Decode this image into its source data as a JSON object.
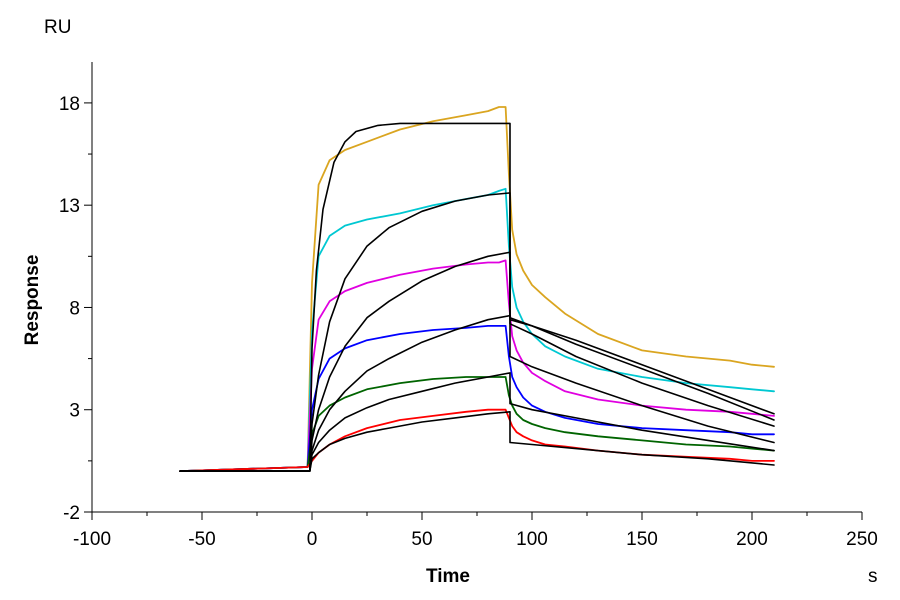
{
  "chart_data": {
    "type": "line",
    "xlabel": "Time",
    "ylabel": "Response",
    "x_unit": "s",
    "y_unit": "RU",
    "xlim": [
      -100,
      250
    ],
    "ylim": [
      -2,
      20
    ],
    "x_ticks": [
      -100,
      -50,
      0,
      50,
      100,
      150,
      200,
      250
    ],
    "y_ticks": [
      -2,
      3,
      8,
      13,
      18
    ],
    "grid": false,
    "series": [
      {
        "kind": "measured",
        "color": "#daa520",
        "x": [
          -60,
          -2,
          0,
          3,
          8,
          15,
          25,
          40,
          55,
          70,
          80,
          85,
          88,
          89.5,
          91,
          93,
          96,
          100,
          106,
          115,
          130,
          150,
          170,
          190,
          200,
          210
        ],
        "y": [
          0,
          0.2,
          9.2,
          14.0,
          15.2,
          15.7,
          16.1,
          16.7,
          17.1,
          17.4,
          17.6,
          17.8,
          17.8,
          14.5,
          11.8,
          10.6,
          9.8,
          9.1,
          8.5,
          7.7,
          6.7,
          5.9,
          5.6,
          5.4,
          5.2,
          5.1
        ]
      },
      {
        "kind": "measured",
        "color": "#00c8d2",
        "x": [
          -60,
          -2,
          0,
          3,
          8,
          15,
          25,
          40,
          55,
          70,
          80,
          85,
          88,
          89.5,
          91,
          93,
          96,
          100,
          106,
          115,
          130,
          150,
          170,
          190,
          200,
          210
        ],
        "y": [
          0,
          0.2,
          6.8,
          10.5,
          11.5,
          12.0,
          12.3,
          12.6,
          13.0,
          13.3,
          13.5,
          13.7,
          13.8,
          11.0,
          9.0,
          8.0,
          7.3,
          6.7,
          6.1,
          5.6,
          5.0,
          4.6,
          4.3,
          4.1,
          4.0,
          3.9
        ]
      },
      {
        "kind": "measured",
        "color": "#e000e0",
        "x": [
          -60,
          -2,
          0,
          3,
          8,
          15,
          25,
          40,
          55,
          70,
          80,
          85,
          88,
          89.5,
          91,
          93,
          96,
          100,
          106,
          115,
          130,
          150,
          170,
          190,
          200,
          210
        ],
        "y": [
          0,
          0.2,
          5.0,
          7.4,
          8.3,
          8.8,
          9.2,
          9.6,
          9.9,
          10.1,
          10.2,
          10.2,
          10.3,
          8.2,
          6.6,
          5.9,
          5.3,
          4.8,
          4.4,
          3.9,
          3.5,
          3.2,
          3.0,
          2.9,
          2.8,
          2.7
        ]
      },
      {
        "kind": "measured",
        "color": "#0000ff",
        "x": [
          -60,
          -2,
          0,
          3,
          8,
          15,
          25,
          40,
          55,
          70,
          80,
          85,
          88,
          89.5,
          91,
          93,
          96,
          100,
          106,
          115,
          130,
          150,
          170,
          190,
          200,
          210
        ],
        "y": [
          0,
          0.2,
          3.0,
          4.5,
          5.5,
          6.0,
          6.4,
          6.7,
          6.9,
          7.0,
          7.1,
          7.1,
          7.1,
          5.6,
          4.6,
          4.1,
          3.6,
          3.2,
          2.9,
          2.6,
          2.3,
          2.1,
          2.0,
          1.9,
          1.8,
          1.8
        ]
      },
      {
        "kind": "measured",
        "color": "#006400",
        "x": [
          -60,
          -2,
          0,
          3,
          8,
          15,
          25,
          40,
          55,
          70,
          80,
          85,
          88,
          89.5,
          91,
          93,
          96,
          100,
          106,
          115,
          130,
          150,
          170,
          190,
          200,
          210
        ],
        "y": [
          0,
          0.2,
          1.8,
          2.7,
          3.2,
          3.6,
          4.0,
          4.3,
          4.5,
          4.6,
          4.6,
          4.6,
          4.6,
          3.7,
          3.2,
          2.8,
          2.5,
          2.3,
          2.1,
          1.9,
          1.7,
          1.5,
          1.3,
          1.2,
          1.1,
          1.0
        ]
      },
      {
        "kind": "measured",
        "color": "#ff0000",
        "x": [
          -60,
          -2,
          0,
          3,
          8,
          15,
          25,
          40,
          55,
          70,
          80,
          85,
          88,
          89.5,
          91,
          93,
          96,
          100,
          106,
          115,
          130,
          150,
          170,
          190,
          200,
          210
        ],
        "y": [
          0,
          0.2,
          0.5,
          0.9,
          1.3,
          1.7,
          2.1,
          2.5,
          2.7,
          2.9,
          3.0,
          3.0,
          3.0,
          2.6,
          2.2,
          1.9,
          1.7,
          1.5,
          1.3,
          1.2,
          1.0,
          0.8,
          0.7,
          0.6,
          0.5,
          0.5
        ]
      },
      {
        "kind": "fit",
        "color": "#000000",
        "x": [
          -60,
          -1,
          0,
          2,
          5,
          10,
          15,
          20,
          30,
          40,
          50,
          60,
          70,
          80,
          90,
          90.01,
          100,
          120,
          150,
          180,
          210
        ],
        "y": [
          0,
          0,
          6.0,
          9.8,
          12.8,
          15.1,
          16.1,
          16.6,
          16.9,
          17.0,
          17.0,
          17.0,
          17.0,
          17.0,
          17.0,
          7.4,
          7.1,
          6.4,
          5.2,
          4.0,
          2.8
        ]
      },
      {
        "kind": "fit",
        "color": "#000000",
        "x": [
          -60,
          -1,
          0,
          3,
          8,
          15,
          25,
          35,
          50,
          65,
          80,
          90,
          90.01,
          100,
          120,
          150,
          180,
          210
        ],
        "y": [
          0,
          0,
          2.3,
          4.7,
          7.3,
          9.4,
          11.0,
          11.9,
          12.7,
          13.2,
          13.5,
          13.6,
          7.5,
          7.1,
          6.2,
          5.0,
          3.8,
          2.5
        ]
      },
      {
        "kind": "fit",
        "color": "#000000",
        "x": [
          -60,
          -1,
          0,
          3,
          8,
          15,
          25,
          35,
          50,
          65,
          80,
          90,
          90.01,
          100,
          120,
          150,
          180,
          210
        ],
        "y": [
          0,
          0,
          1.5,
          3.0,
          4.6,
          6.1,
          7.5,
          8.3,
          9.3,
          10.0,
          10.5,
          10.7,
          7.2,
          6.7,
          5.6,
          4.3,
          3.2,
          2.2
        ]
      },
      {
        "kind": "fit",
        "color": "#000000",
        "x": [
          -60,
          -1,
          0,
          3,
          8,
          15,
          25,
          35,
          50,
          65,
          80,
          90,
          90.01,
          100,
          120,
          150,
          180,
          210
        ],
        "y": [
          0,
          0,
          1.0,
          2.0,
          3.0,
          3.9,
          4.9,
          5.5,
          6.3,
          6.9,
          7.4,
          7.6,
          5.6,
          5.1,
          4.3,
          3.2,
          2.2,
          1.4
        ]
      },
      {
        "kind": "fit",
        "color": "#000000",
        "x": [
          -60,
          -1,
          0,
          3,
          8,
          15,
          25,
          35,
          50,
          65,
          80,
          90,
          90.01,
          100,
          120,
          150,
          180,
          210
        ],
        "y": [
          0,
          0,
          0.8,
          1.4,
          2.0,
          2.6,
          3.1,
          3.5,
          3.9,
          4.3,
          4.6,
          4.8,
          3.3,
          3.0,
          2.6,
          2.0,
          1.5,
          1.0
        ]
      },
      {
        "kind": "fit",
        "color": "#000000",
        "x": [
          -60,
          -1,
          0,
          3,
          8,
          15,
          25,
          35,
          50,
          65,
          80,
          90,
          90.01,
          100,
          120,
          150,
          180,
          210
        ],
        "y": [
          0,
          0,
          0.6,
          0.9,
          1.3,
          1.6,
          1.9,
          2.1,
          2.4,
          2.6,
          2.8,
          2.9,
          1.4,
          1.3,
          1.1,
          0.8,
          0.6,
          0.3
        ]
      }
    ]
  }
}
